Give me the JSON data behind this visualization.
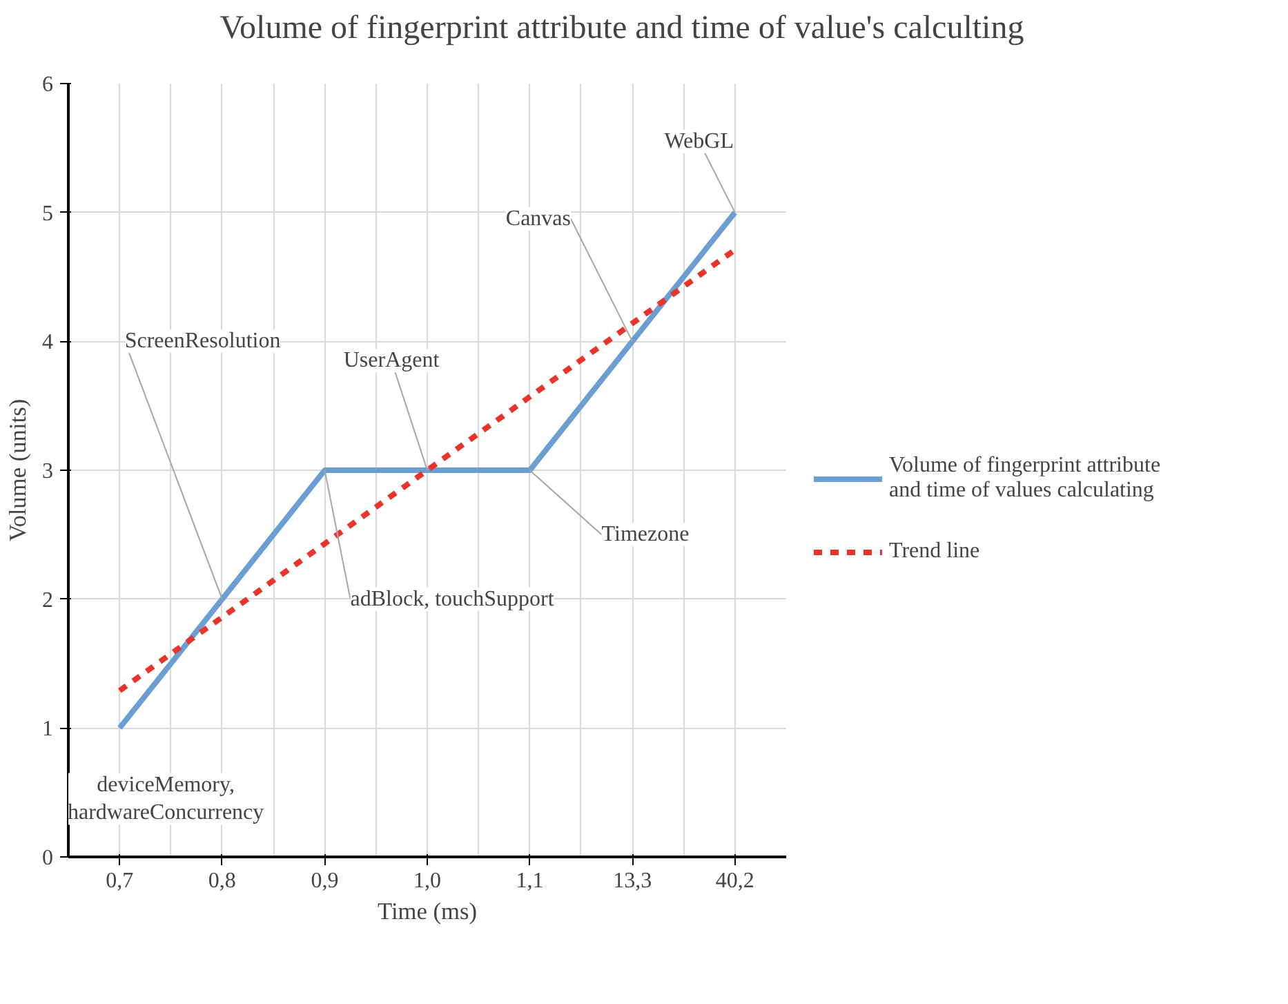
{
  "chart_data": {
    "type": "line",
    "title": "Volume of fingerprint attribute and time of value's calculting",
    "xlabel": "Time (ms)",
    "ylabel": "Volume (units)",
    "categories": [
      "0,7",
      "0,8",
      "0,9",
      "1,0",
      "1,1",
      "13,3",
      "40,2"
    ],
    "series": [
      {
        "name": "Volume of fingerprint attribute\nand time of values calculating",
        "color": "#6a9fd4",
        "values": [
          1,
          2,
          3,
          3,
          3,
          4,
          5
        ],
        "line_style": "solid"
      },
      {
        "name": "Trend line",
        "color": "#e8342b",
        "values": [
          1.29,
          1.86,
          2.43,
          3.0,
          3.57,
          4.14,
          4.71
        ],
        "line_style": "dashed"
      }
    ],
    "ylim": [
      0,
      6
    ],
    "yticks": [
      0,
      1,
      2,
      3,
      4,
      5,
      6
    ],
    "grid": true,
    "legend": "right",
    "marker": "none",
    "annotations": [
      {
        "text": "deviceMemory,\nhardwareConcurrency",
        "x": "0,7",
        "y": 1
      },
      {
        "text": "ScreenResolution",
        "x": "0,8",
        "y": 2
      },
      {
        "text": "adBlock, touchSupport",
        "x": "0,9",
        "y": 3
      },
      {
        "text": "UserAgent",
        "x": "1,0",
        "y": 3
      },
      {
        "text": "Timezone",
        "x": "1,1",
        "y": 3
      },
      {
        "text": "Canvas",
        "x": "13,3",
        "y": 4
      },
      {
        "text": "WebGL",
        "x": "40,2",
        "y": 5
      }
    ]
  }
}
